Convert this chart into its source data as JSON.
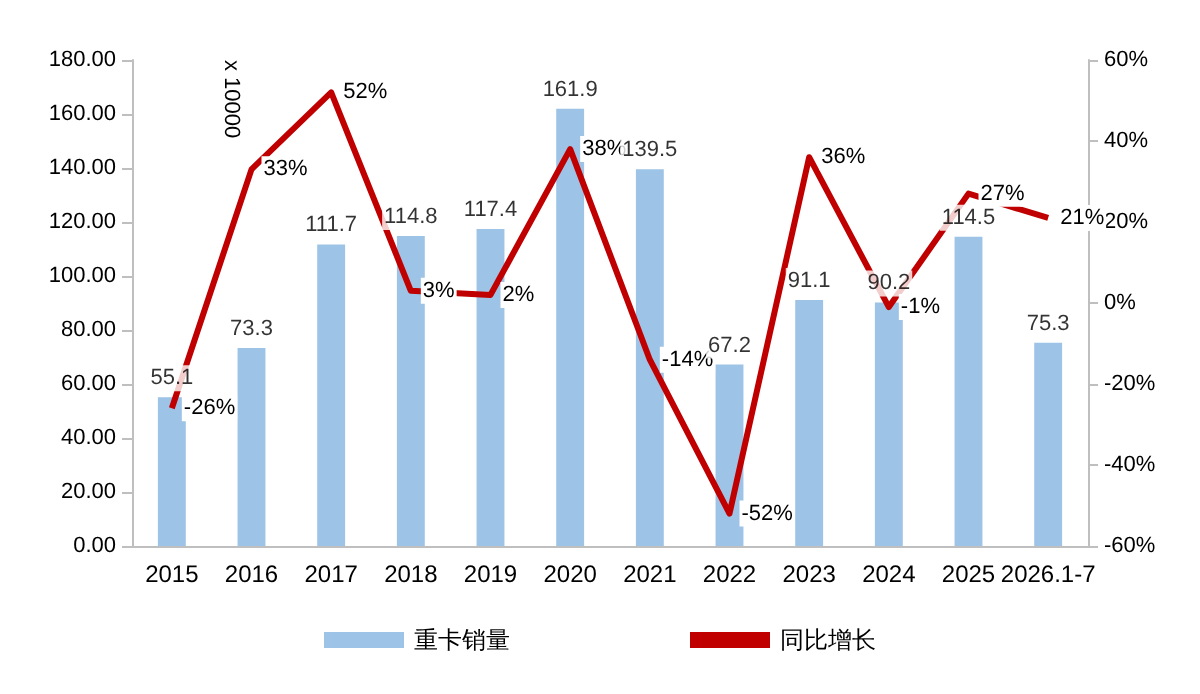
{
  "chart_data": {
    "type": "bar",
    "categories": [
      "2015",
      "2016",
      "2017",
      "2018",
      "2019",
      "2020",
      "2021",
      "2022",
      "2023",
      "2024",
      "2025",
      "2026.1-7"
    ],
    "series": [
      {
        "name": "重卡销量",
        "color": "#9dc3e6",
        "values": [
          55.1,
          73.3,
          111.7,
          114.8,
          117.4,
          161.9,
          139.5,
          67.2,
          91.1,
          90.2,
          114.5,
          75.3
        ],
        "value_labels": [
          "55.1",
          "73.3",
          "111.7",
          "114.8",
          "117.4",
          "161.9",
          "139.5",
          "67.2",
          "91.1",
          "90.2",
          "114.5",
          "75.3"
        ]
      },
      {
        "name": "同比增长",
        "type": "line",
        "axis": "y2",
        "color": "#c00000",
        "values": [
          -26,
          33,
          52,
          3,
          2,
          38,
          -14,
          -52,
          36,
          -1,
          27,
          21
        ],
        "value_labels": [
          "-26%",
          "33%",
          "52%",
          "3%",
          "2%",
          "38%",
          "-14%",
          "-52%",
          "36%",
          "-1%",
          "27%",
          "21%"
        ]
      }
    ],
    "ylim": [
      0,
      180
    ],
    "yticks": [
      {
        "value": 0,
        "label": "0.00"
      },
      {
        "value": 20,
        "label": "20.00"
      },
      {
        "value": 40,
        "label": "40.00"
      },
      {
        "value": 60,
        "label": "60.00"
      },
      {
        "value": 80,
        "label": "80.00"
      },
      {
        "value": 100,
        "label": "100.00"
      },
      {
        "value": 120,
        "label": "120.00"
      },
      {
        "value": 140,
        "label": "140.00"
      },
      {
        "value": 160,
        "label": "160.00"
      },
      {
        "value": 180,
        "label": "180.00"
      }
    ],
    "y2lim": [
      -60,
      60
    ],
    "y2ticks": [
      {
        "value": -60,
        "label": "-60%"
      },
      {
        "value": -40,
        "label": "-40%"
      },
      {
        "value": -20,
        "label": "-20%"
      },
      {
        "value": 0,
        "label": "0%"
      },
      {
        "value": 20,
        "label": "20%"
      },
      {
        "value": 40,
        "label": "40%"
      },
      {
        "value": 60,
        "label": "60%"
      }
    ],
    "annotations": [
      "x 10000"
    ],
    "grid": false,
    "legend": "bottom",
    "marker": "none",
    "line_style": "solid"
  }
}
